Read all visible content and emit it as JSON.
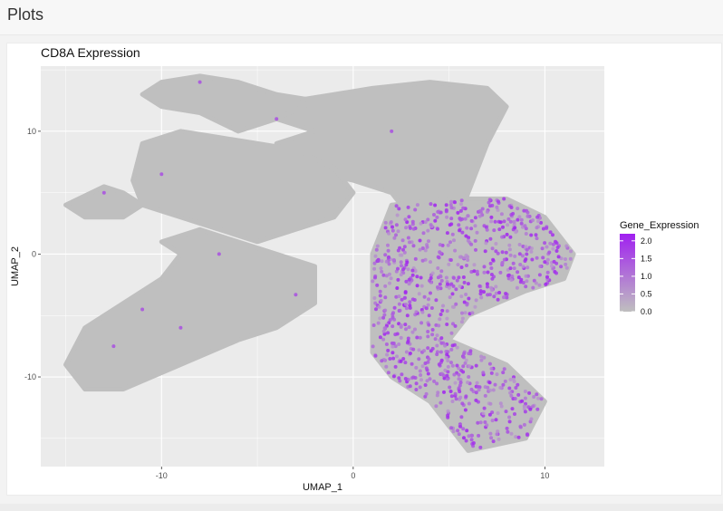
{
  "header": {
    "title": "Plots"
  },
  "colors": {
    "panel_background": "#EBEBEB",
    "grid": "#FFFFFF",
    "low": "#BFBFBF",
    "high": "#A020F0"
  },
  "chart_data": {
    "type": "scatter",
    "title": "CD8A Expression",
    "xlabel": "UMAP_1",
    "ylabel": "UMAP_2",
    "xlim": [
      -16.3,
      13.1
    ],
    "ylim": [
      -17.3,
      15.3
    ],
    "x_ticks": [
      -10,
      0,
      10
    ],
    "x_tick_labels": [
      "-10",
      "0",
      "10"
    ],
    "y_ticks": [
      -10,
      0,
      10
    ],
    "y_tick_labels": [
      "-10",
      "0",
      "10"
    ],
    "grid": true,
    "color_scale": {
      "name": "Gene_Expression",
      "min": 0.0,
      "max": 2.2,
      "low_color": "#BFBFBF",
      "high_color": "#A020F0",
      "breaks": [
        0.0,
        0.5,
        1.0,
        1.5,
        2.0
      ],
      "break_labels": [
        "0.0",
        "0.5",
        "1.0",
        "1.5",
        "2.0"
      ]
    },
    "legend_position": "right",
    "cells_summary": "Gray cells (expression 0) fill most of the embedding; purple CD8A-expressing cells concentrate in the right lobe (UMAP_1 ≈ 1 to 11, UMAP_2 ≈ -15 to 4).",
    "clusters": [
      {
        "name": "upper-right arm",
        "points": [
          [
            5,
            1
          ],
          [
            6,
            5
          ],
          [
            7,
            9
          ],
          [
            8,
            12
          ],
          [
            7,
            13.5
          ],
          [
            4,
            14
          ],
          [
            1,
            13.5
          ],
          [
            -1,
            13
          ],
          [
            -3,
            12.5
          ],
          [
            -4,
            11
          ],
          [
            -2,
            10
          ],
          [
            -4,
            9
          ],
          [
            -3,
            7
          ],
          [
            0,
            6
          ],
          [
            2,
            5
          ],
          [
            3,
            3
          ],
          [
            4,
            2
          ],
          [
            5,
            1
          ]
        ]
      },
      {
        "name": "top-left arm",
        "points": [
          [
            -10,
            14
          ],
          [
            -8,
            14.5
          ],
          [
            -6,
            14
          ],
          [
            -4,
            13
          ],
          [
            -2,
            12.5
          ],
          [
            -4,
            11
          ],
          [
            -6,
            10
          ],
          [
            -8,
            11.5
          ],
          [
            -10,
            12
          ],
          [
            -11,
            13
          ],
          [
            -10,
            14
          ]
        ]
      },
      {
        "name": "middle-left mass",
        "points": [
          [
            -11,
            9
          ],
          [
            -9,
            10
          ],
          [
            -7,
            9.5
          ],
          [
            -5,
            9
          ],
          [
            -3,
            8.5
          ],
          [
            -1,
            7
          ],
          [
            0,
            5
          ],
          [
            -1,
            3
          ],
          [
            -3,
            2
          ],
          [
            -5,
            1
          ],
          [
            -7,
            2
          ],
          [
            -9,
            3
          ],
          [
            -11,
            4
          ],
          [
            -11.5,
            6
          ],
          [
            -11,
            9
          ]
        ]
      },
      {
        "name": "far-left blob",
        "points": [
          [
            -15,
            4
          ],
          [
            -13,
            5.5
          ],
          [
            -12,
            5
          ],
          [
            -11,
            4
          ],
          [
            -12,
            3
          ],
          [
            -14,
            3
          ],
          [
            -15,
            4
          ]
        ]
      },
      {
        "name": "bottom-left lobe",
        "points": [
          [
            -10,
            1
          ],
          [
            -8,
            2
          ],
          [
            -6,
            1
          ],
          [
            -4,
            0
          ],
          [
            -2,
            -1
          ],
          [
            -2,
            -4
          ],
          [
            -4,
            -6
          ],
          [
            -6,
            -7
          ],
          [
            -9,
            -9
          ],
          [
            -12,
            -11
          ],
          [
            -14,
            -11
          ],
          [
            -15,
            -9
          ],
          [
            -14,
            -6
          ],
          [
            -12,
            -4
          ],
          [
            -10,
            -2
          ],
          [
            -9,
            0
          ],
          [
            -10,
            1
          ]
        ]
      },
      {
        "name": "right lobe",
        "points": [
          [
            2,
            4
          ],
          [
            5,
            4.5
          ],
          [
            8,
            4.5
          ],
          [
            10,
            3
          ],
          [
            11.5,
            0
          ],
          [
            11,
            -2
          ],
          [
            9,
            -3
          ],
          [
            6,
            -5
          ],
          [
            5,
            -7
          ],
          [
            8,
            -9
          ],
          [
            10,
            -12
          ],
          [
            9,
            -15
          ],
          [
            6,
            -16
          ],
          [
            5,
            -14
          ],
          [
            4,
            -12
          ],
          [
            2,
            -10
          ],
          [
            1,
            -8
          ],
          [
            1,
            -4
          ],
          [
            1,
            0
          ],
          [
            2,
            4
          ]
        ]
      }
    ]
  }
}
